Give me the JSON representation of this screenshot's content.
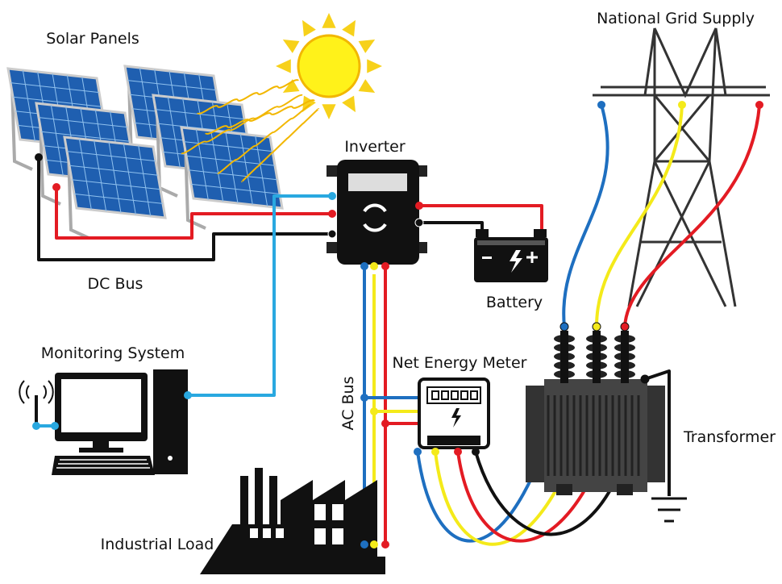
{
  "nodes": [
    {
      "label": "Solar Panels"
    },
    {
      "label": "National Grid Supply"
    },
    {
      "label": "Inverter"
    },
    {
      "label": "DC Bus"
    },
    {
      "label": "Battery"
    },
    {
      "label": "Monitoring System"
    },
    {
      "label": "Net Energy Meter"
    },
    {
      "label": "AC Bus"
    },
    {
      "label": "Transformer"
    },
    {
      "label": "Industrial Load"
    }
  ]
}
